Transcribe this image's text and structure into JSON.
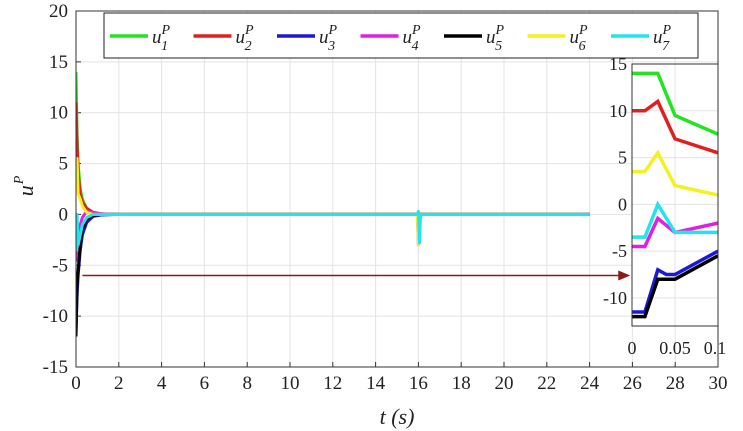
{
  "chart_data": {
    "type": "line",
    "title": "",
    "xlabel": "t (s)",
    "ylabel": "u^P",
    "xlim": [
      0,
      30
    ],
    "ylim": [
      -15,
      20
    ],
    "xticks": [
      "0",
      "2",
      "4",
      "6",
      "8",
      "10",
      "12",
      "14",
      "16",
      "18",
      "20",
      "22",
      "24",
      "26",
      "28",
      "30"
    ],
    "yticks": [
      "20",
      "15",
      "10",
      "5",
      "0",
      "-5",
      "-10",
      "-15"
    ],
    "grid": true,
    "legend_position": "top",
    "series": [
      {
        "name": "u_1^P",
        "color": "#22e422",
        "values": [
          [
            0,
            14
          ],
          [
            0.05,
            8
          ],
          [
            0.1,
            5
          ],
          [
            0.2,
            2.5
          ],
          [
            0.3,
            1.5
          ],
          [
            0.5,
            0.6
          ],
          [
            0.8,
            0.2
          ],
          [
            1.2,
            0.05
          ],
          [
            2,
            0
          ],
          [
            15.95,
            0
          ],
          [
            16,
            0.2
          ],
          [
            16.05,
            0
          ],
          [
            24,
            0
          ]
        ]
      },
      {
        "name": "u_2^P",
        "color": "#e0201c",
        "values": [
          [
            0,
            11
          ],
          [
            0.05,
            7
          ],
          [
            0.1,
            4
          ],
          [
            0.2,
            2
          ],
          [
            0.3,
            1.2
          ],
          [
            0.5,
            0.6
          ],
          [
            0.8,
            0.2
          ],
          [
            1.2,
            0.05
          ],
          [
            2,
            0
          ],
          [
            15.95,
            0
          ],
          [
            16,
            0.1
          ],
          [
            16.05,
            0
          ],
          [
            24,
            0
          ]
        ]
      },
      {
        "name": "u_3^P",
        "color": "#1a1ad6",
        "values": [
          [
            0,
            -11.5
          ],
          [
            0.05,
            -8
          ],
          [
            0.1,
            -6
          ],
          [
            0.2,
            -3.5
          ],
          [
            0.3,
            -2
          ],
          [
            0.5,
            -0.8
          ],
          [
            0.8,
            -0.2
          ],
          [
            1.2,
            -0.05
          ],
          [
            2,
            0
          ],
          [
            24,
            0
          ]
        ]
      },
      {
        "name": "u_4^P",
        "color": "#e21ee2",
        "values": [
          [
            0,
            -4.5
          ],
          [
            0.03,
            -4.5
          ],
          [
            0.05,
            -1.5
          ],
          [
            0.1,
            -2.5
          ],
          [
            0.2,
            -1
          ],
          [
            0.3,
            -0.3
          ],
          [
            0.5,
            0.3
          ],
          [
            0.8,
            0.2
          ],
          [
            1.2,
            0.05
          ],
          [
            2,
            0
          ],
          [
            15.95,
            0
          ],
          [
            16,
            -3
          ],
          [
            16.05,
            0
          ],
          [
            24,
            0
          ]
        ]
      },
      {
        "name": "u_5^P",
        "color": "#000000",
        "values": [
          [
            0,
            -12
          ],
          [
            0.05,
            -7
          ],
          [
            0.1,
            -5.5
          ],
          [
            0.2,
            -3
          ],
          [
            0.3,
            -1.5
          ],
          [
            0.5,
            -0.5
          ],
          [
            0.8,
            -0.1
          ],
          [
            1.2,
            0
          ],
          [
            2,
            0
          ],
          [
            24,
            0
          ]
        ]
      },
      {
        "name": "u_6^P",
        "color": "#f5f020",
        "values": [
          [
            0,
            3.5
          ],
          [
            0.03,
            4
          ],
          [
            0.05,
            5.5
          ],
          [
            0.1,
            2
          ],
          [
            0.2,
            1.5
          ],
          [
            0.3,
            0.8
          ],
          [
            0.5,
            0.2
          ],
          [
            0.8,
            0
          ],
          [
            2,
            0
          ],
          [
            15.95,
            0
          ],
          [
            16,
            -3
          ],
          [
            16.05,
            0
          ],
          [
            24,
            0
          ]
        ]
      },
      {
        "name": "u_7^P",
        "color": "#22e4ee",
        "values": [
          [
            0,
            -3.5
          ],
          [
            0.03,
            -3.5
          ],
          [
            0.05,
            0
          ],
          [
            0.1,
            -3
          ],
          [
            0.2,
            -2
          ],
          [
            0.3,
            -1
          ],
          [
            0.5,
            -0.3
          ],
          [
            0.8,
            0
          ],
          [
            2,
            0
          ],
          [
            15.95,
            0
          ],
          [
            16,
            0.3
          ],
          [
            16.05,
            -2.8
          ],
          [
            16.1,
            0
          ],
          [
            24,
            0
          ]
        ]
      }
    ],
    "inset": {
      "xlim": [
        0,
        0.1
      ],
      "ylim": [
        -13,
        15
      ],
      "xticks": [
        "0",
        "0.05",
        "0.1"
      ],
      "yticks": [
        "15",
        "10",
        "5",
        "0",
        "-5",
        "-10"
      ],
      "series": [
        {
          "name": "u_1^P",
          "color": "#22e422",
          "values": [
            [
              0,
              14
            ],
            [
              0.03,
              14
            ],
            [
              0.05,
              9.5
            ],
            [
              0.1,
              7.5
            ]
          ]
        },
        {
          "name": "u_2^P",
          "color": "#e0201c",
          "values": [
            [
              0,
              10
            ],
            [
              0.015,
              10
            ],
            [
              0.03,
              11
            ],
            [
              0.05,
              7
            ],
            [
              0.1,
              5.5
            ]
          ]
        },
        {
          "name": "u_3^P",
          "color": "#1a1ad6",
          "values": [
            [
              0,
              -11.5
            ],
            [
              0.015,
              -11.5
            ],
            [
              0.03,
              -7
            ],
            [
              0.04,
              -7.5
            ],
            [
              0.05,
              -7.5
            ],
            [
              0.1,
              -5
            ]
          ]
        },
        {
          "name": "u_4^P",
          "color": "#e21ee2",
          "values": [
            [
              0,
              -4.5
            ],
            [
              0.015,
              -4.5
            ],
            [
              0.03,
              -1.5
            ],
            [
              0.05,
              -3
            ],
            [
              0.1,
              -2
            ]
          ]
        },
        {
          "name": "u_5^P",
          "color": "#000000",
          "values": [
            [
              0,
              -12
            ],
            [
              0.015,
              -12
            ],
            [
              0.03,
              -8
            ],
            [
              0.05,
              -8
            ],
            [
              0.1,
              -5.5
            ]
          ]
        },
        {
          "name": "u_6^P",
          "color": "#f5f020",
          "values": [
            [
              0,
              3.5
            ],
            [
              0.015,
              3.5
            ],
            [
              0.03,
              5.5
            ],
            [
              0.05,
              2
            ],
            [
              0.1,
              1
            ]
          ]
        },
        {
          "name": "u_7^P",
          "color": "#22e4ee",
          "values": [
            [
              0,
              -3.5
            ],
            [
              0.015,
              -3.5
            ],
            [
              0.03,
              0
            ],
            [
              0.05,
              -3
            ],
            [
              0.1,
              -3
            ]
          ]
        }
      ]
    },
    "annotation": {
      "type": "arrow",
      "color": "#8b1a1a",
      "from": [
        0.3,
        -6
      ],
      "to": [
        25.9,
        -6
      ]
    }
  }
}
